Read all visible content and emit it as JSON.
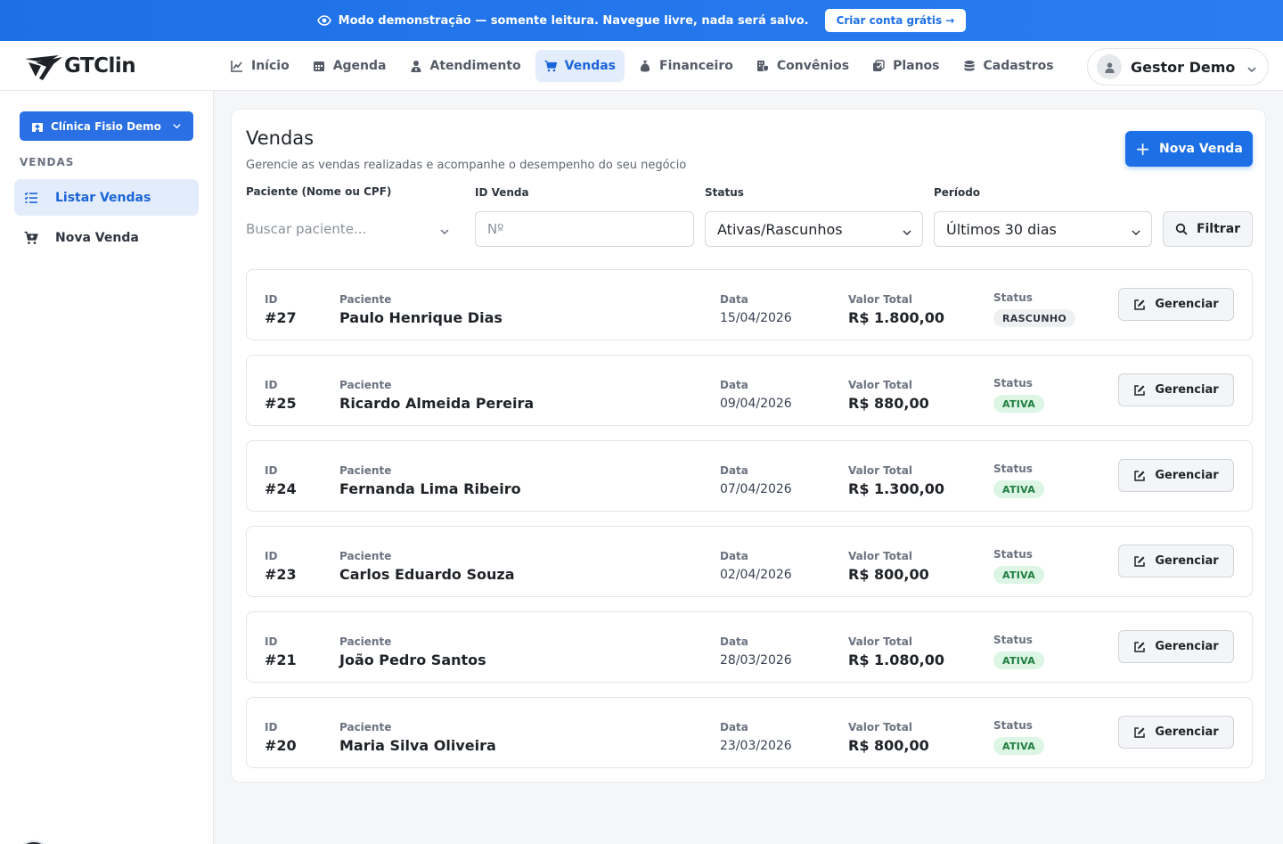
{
  "banner": {
    "text": "Modo demonstração — somente leitura. Navegue livre, nada será salvo.",
    "cta": "Criar conta grátis →"
  },
  "brand": {
    "name": "GTClin"
  },
  "nav": {
    "items": [
      {
        "label": "Início",
        "icon": "chart-line-icon"
      },
      {
        "label": "Agenda",
        "icon": "calendar-icon"
      },
      {
        "label": "Atendimento",
        "icon": "user-doctor-icon"
      },
      {
        "label": "Vendas",
        "icon": "cart-icon",
        "active": true
      },
      {
        "label": "Financeiro",
        "icon": "money-bag-icon"
      },
      {
        "label": "Convênios",
        "icon": "building-shield-icon"
      },
      {
        "label": "Planos",
        "icon": "plans-icon"
      },
      {
        "label": "Cadastros",
        "icon": "database-icon"
      }
    ],
    "user": "Gestor Demo"
  },
  "sidebar": {
    "clinic": "Clínica Fisio Demo",
    "section": "VENDAS",
    "items": [
      {
        "label": "Listar Vendas",
        "icon": "list-check-icon",
        "active": true
      },
      {
        "label": "Nova Venda",
        "icon": "cart-plus-icon"
      }
    ],
    "floating": "N"
  },
  "page": {
    "title": "Vendas",
    "subtitle": "Gerencie as vendas realizadas e acompanhe o desempenho do seu negócio",
    "new_button": "Nova Venda"
  },
  "filters": {
    "patient_label": "Paciente (Nome ou CPF)",
    "patient_placeholder": "Buscar paciente...",
    "id_label": "ID Venda",
    "id_placeholder": "Nº",
    "status_label": "Status",
    "status_value": "Ativas/Rascunhos",
    "period_label": "Período",
    "period_value": "Últimos 30 dias",
    "filter_button": "Filtrar"
  },
  "columns": {
    "id": "ID",
    "patient": "Paciente",
    "date": "Data",
    "total": "Valor Total",
    "status": "Status",
    "action": "Gerenciar"
  },
  "sales": [
    {
      "id": "#27",
      "patient": "Paulo Henrique Dias",
      "date": "15/04/2026",
      "total": "R$ 1.800,00",
      "status": "RASCUNHO",
      "kind": "draft"
    },
    {
      "id": "#25",
      "patient": "Ricardo Almeida Pereira",
      "date": "09/04/2026",
      "total": "R$ 880,00",
      "status": "ATIVA",
      "kind": "active"
    },
    {
      "id": "#24",
      "patient": "Fernanda Lima Ribeiro",
      "date": "07/04/2026",
      "total": "R$ 1.300,00",
      "status": "ATIVA",
      "kind": "active"
    },
    {
      "id": "#23",
      "patient": "Carlos Eduardo Souza",
      "date": "02/04/2026",
      "total": "R$ 800,00",
      "status": "ATIVA",
      "kind": "active"
    },
    {
      "id": "#21",
      "patient": "João Pedro Santos",
      "date": "28/03/2026",
      "total": "R$ 1.080,00",
      "status": "ATIVA",
      "kind": "active"
    },
    {
      "id": "#20",
      "patient": "Maria Silva Oliveira",
      "date": "23/03/2026",
      "total": "R$ 800,00",
      "status": "ATIVA",
      "kind": "active"
    }
  ],
  "colors": {
    "accent": "#1d6fe6",
    "active_nav_bg": "#e3ecfb",
    "badge_active_bg": "#dcf5e4",
    "badge_active_text": "#1e7d3e",
    "badge_draft_bg": "#eef0f2"
  }
}
